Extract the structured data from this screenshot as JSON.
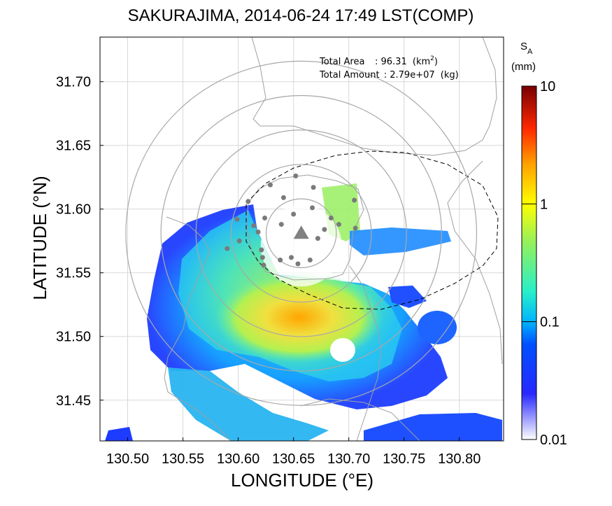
{
  "chart_data": {
    "type": "heatmap",
    "title": "SAKURAJIMA, 2014-06-24 17:49 LST(COMP)",
    "xlabel": "LONGITUDE (°E)",
    "ylabel": "LATITUDE (°N)",
    "xlim": [
      130.475,
      130.84
    ],
    "ylim": [
      31.418,
      31.735
    ],
    "x_ticks": [
      "130.50",
      "130.55",
      "130.60",
      "130.65",
      "130.70",
      "130.75",
      "130.80"
    ],
    "y_ticks": [
      "31.45",
      "31.50",
      "31.55",
      "31.60",
      "31.65",
      "31.70"
    ],
    "grid": true,
    "annotation": {
      "area_label": "Total Area",
      "area_value": ": 96.31",
      "area_unit": "(km",
      "area_unit_exp": "2",
      "area_unit_close": ")",
      "amount_label": "Total Amount",
      "amount_value": ": 2.79e+07",
      "amount_unit": "(kg)"
    },
    "colorbar": {
      "symbol": "S",
      "subscript": "A",
      "unit": "(mm)",
      "scale": "log",
      "range": [
        0.01,
        10
      ],
      "ticks": [
        "0.01",
        "0.1",
        "1",
        "10"
      ],
      "colors": [
        "#ffffff",
        "#1e1ee6",
        "#00b4ff",
        "#28f0b4",
        "#ffff00",
        "#ff8c00",
        "#ff1e00",
        "#7d0000"
      ]
    },
    "vent": {
      "lon": 130.657,
      "lat": 31.581
    },
    "range_rings_km": [
      3,
      6,
      9,
      12,
      15
    ],
    "station_points": [
      [
        130.652,
        31.626
      ],
      [
        130.668,
        31.617
      ],
      [
        130.629,
        31.619
      ],
      [
        130.609,
        31.606
      ],
      [
        130.641,
        31.609
      ],
      [
        130.667,
        31.601
      ],
      [
        130.599,
        31.592
      ],
      [
        130.624,
        31.593
      ],
      [
        130.65,
        31.596
      ],
      [
        130.684,
        31.593
      ],
      [
        130.705,
        31.607
      ],
      [
        130.706,
        31.585
      ],
      [
        130.614,
        31.587
      ],
      [
        130.639,
        31.588
      ],
      [
        130.691,
        31.588
      ],
      [
        130.678,
        31.584
      ],
      [
        130.601,
        31.575
      ],
      [
        130.618,
        31.582
      ],
      [
        130.621,
        31.568
      ],
      [
        130.59,
        31.569
      ],
      [
        130.672,
        31.577
      ],
      [
        130.622,
        31.562
      ],
      [
        130.638,
        31.56
      ],
      [
        130.648,
        31.562
      ],
      [
        130.665,
        31.56
      ],
      [
        130.623,
        31.556
      ],
      [
        130.654,
        31.557
      ]
    ],
    "deposit_regions": [
      {
        "lon": 130.655,
        "lat": 31.515,
        "rlon": 0.045,
        "rlat": 0.02,
        "level": 0.8
      },
      {
        "lon": 130.62,
        "lat": 31.53,
        "rlon": 0.05,
        "rlat": 0.04,
        "level": 0.35
      },
      {
        "lon": 130.7,
        "lat": 31.5,
        "rlon": 0.04,
        "rlat": 0.035,
        "level": 0.15
      },
      {
        "lon": 130.56,
        "lat": 31.505,
        "rlon": 0.03,
        "rlat": 0.03,
        "level": 0.1
      },
      {
        "lon": 130.77,
        "lat": 31.505,
        "rlon": 0.02,
        "rlat": 0.018,
        "level": 0.06
      },
      {
        "lon": 130.7,
        "lat": 31.58,
        "rlon": 0.025,
        "rlat": 0.02,
        "level": 0.15
      },
      {
        "lon": 130.74,
        "lat": 31.44,
        "rlon": 0.06,
        "rlat": 0.012,
        "level": 0.05
      }
    ]
  }
}
